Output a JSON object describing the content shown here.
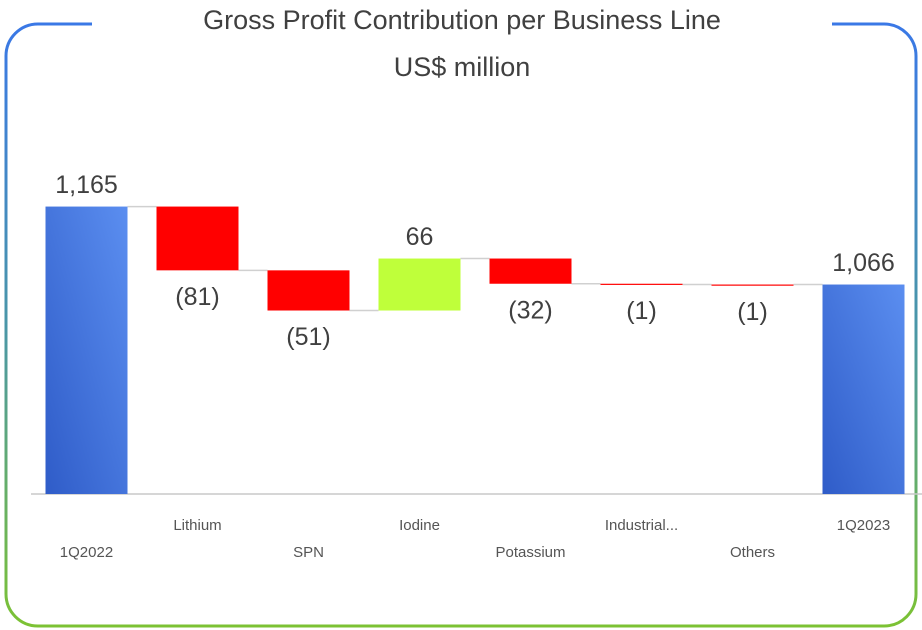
{
  "chart_data": {
    "type": "waterfall",
    "title": "Gross Profit Contribution per Business Line",
    "subtitle": "US$ million",
    "categories": [
      "1Q2022",
      "Lithium",
      "SPN",
      "Iodine",
      "Potassium",
      "Industrial...",
      "Others",
      "1Q2023"
    ],
    "values": [
      1165,
      -81,
      -51,
      66,
      -32,
      -1,
      -1,
      1066
    ],
    "value_labels": [
      "1,165",
      "(81)",
      "(51)",
      "66",
      "(32)",
      "(1)",
      "(1)",
      "1,066"
    ],
    "is_total": [
      true,
      false,
      false,
      false,
      false,
      false,
      false,
      true
    ],
    "colors": {
      "total": "#4a7be3",
      "increase": "#bfff3a",
      "decrease": "#ff0000"
    },
    "ylim": [
      800,
      1200
    ]
  }
}
